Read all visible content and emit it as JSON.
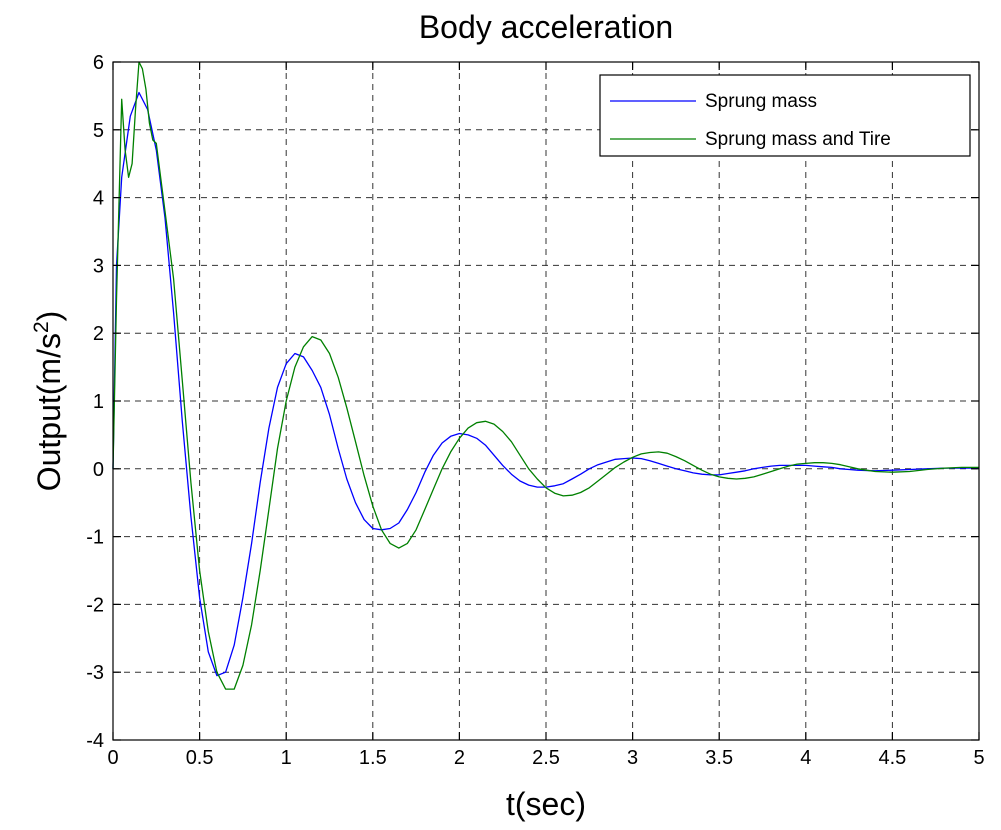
{
  "chart_data": {
    "type": "line",
    "title": "Body acceleration",
    "xlabel": "t(sec)",
    "ylabel": "Output(m/s",
    "ylabel_sup": "2",
    "ylabel_close": ")",
    "xlim": [
      0,
      5
    ],
    "ylim": [
      -4,
      6
    ],
    "xticks": [
      0,
      0.5,
      1,
      1.5,
      2,
      2.5,
      3,
      3.5,
      4,
      4.5,
      5
    ],
    "yticks": [
      -4,
      -3,
      -2,
      -1,
      0,
      1,
      2,
      3,
      4,
      5,
      6
    ],
    "xtick_labels": [
      "0",
      "0.5",
      "1",
      "1.5",
      "2",
      "2.5",
      "3",
      "3.5",
      "4",
      "4.5",
      "5"
    ],
    "ytick_labels": [
      "-4",
      "-3",
      "-2",
      "-1",
      "0",
      "1",
      "2",
      "3",
      "4",
      "5",
      "6"
    ],
    "grid": true,
    "legend_position": "top-right",
    "series": [
      {
        "name": "Sprung mass",
        "color": "#0000ff",
        "points": [
          [
            0,
            0
          ],
          [
            0.02,
            3.0
          ],
          [
            0.05,
            4.3
          ],
          [
            0.1,
            5.2
          ],
          [
            0.15,
            5.55
          ],
          [
            0.2,
            5.3
          ],
          [
            0.25,
            4.7
          ],
          [
            0.3,
            3.7
          ],
          [
            0.35,
            2.3
          ],
          [
            0.4,
            0.7
          ],
          [
            0.45,
            -0.7
          ],
          [
            0.5,
            -1.9
          ],
          [
            0.55,
            -2.7
          ],
          [
            0.6,
            -3.05
          ],
          [
            0.65,
            -3.0
          ],
          [
            0.7,
            -2.6
          ],
          [
            0.75,
            -1.9
          ],
          [
            0.8,
            -1.1
          ],
          [
            0.85,
            -0.2
          ],
          [
            0.9,
            0.6
          ],
          [
            0.95,
            1.2
          ],
          [
            1.0,
            1.55
          ],
          [
            1.05,
            1.7
          ],
          [
            1.1,
            1.65
          ],
          [
            1.15,
            1.45
          ],
          [
            1.2,
            1.2
          ],
          [
            1.25,
            0.8
          ],
          [
            1.3,
            0.3
          ],
          [
            1.35,
            -0.15
          ],
          [
            1.4,
            -0.5
          ],
          [
            1.45,
            -0.75
          ],
          [
            1.5,
            -0.88
          ],
          [
            1.55,
            -0.9
          ],
          [
            1.6,
            -0.88
          ],
          [
            1.65,
            -0.8
          ],
          [
            1.7,
            -0.6
          ],
          [
            1.75,
            -0.35
          ],
          [
            1.8,
            -0.05
          ],
          [
            1.85,
            0.2
          ],
          [
            1.9,
            0.38
          ],
          [
            1.95,
            0.48
          ],
          [
            2.0,
            0.52
          ],
          [
            2.05,
            0.5
          ],
          [
            2.1,
            0.45
          ],
          [
            2.15,
            0.35
          ],
          [
            2.2,
            0.2
          ],
          [
            2.25,
            0.05
          ],
          [
            2.3,
            -0.08
          ],
          [
            2.35,
            -0.18
          ],
          [
            2.4,
            -0.24
          ],
          [
            2.45,
            -0.27
          ],
          [
            2.5,
            -0.27
          ],
          [
            2.55,
            -0.25
          ],
          [
            2.6,
            -0.22
          ],
          [
            2.65,
            -0.15
          ],
          [
            2.7,
            -0.08
          ],
          [
            2.75,
            0.0
          ],
          [
            2.8,
            0.06
          ],
          [
            2.85,
            0.1
          ],
          [
            2.9,
            0.14
          ],
          [
            2.95,
            0.15
          ],
          [
            3.0,
            0.16
          ],
          [
            3.05,
            0.15
          ],
          [
            3.1,
            0.12
          ],
          [
            3.15,
            0.08
          ],
          [
            3.2,
            0.04
          ],
          [
            3.25,
            0.0
          ],
          [
            3.3,
            -0.03
          ],
          [
            3.35,
            -0.06
          ],
          [
            3.4,
            -0.08
          ],
          [
            3.45,
            -0.09
          ],
          [
            3.5,
            -0.09
          ],
          [
            3.55,
            -0.07
          ],
          [
            3.6,
            -0.05
          ],
          [
            3.65,
            -0.03
          ],
          [
            3.7,
            0.0
          ],
          [
            3.75,
            0.02
          ],
          [
            3.8,
            0.04
          ],
          [
            3.85,
            0.05
          ],
          [
            3.9,
            0.05
          ],
          [
            3.95,
            0.05
          ],
          [
            4.0,
            0.05
          ],
          [
            4.05,
            0.04
          ],
          [
            4.1,
            0.03
          ],
          [
            4.15,
            0.02
          ],
          [
            4.2,
            0.0
          ],
          [
            4.25,
            -0.01
          ],
          [
            4.3,
            -0.02
          ],
          [
            4.4,
            -0.03
          ],
          [
            4.5,
            -0.02
          ],
          [
            4.6,
            -0.01
          ],
          [
            4.7,
            0.0
          ],
          [
            4.8,
            0.01
          ],
          [
            4.9,
            0.01
          ],
          [
            5.0,
            0.01
          ]
        ]
      },
      {
        "name": "Sprung mass and Tire",
        "color": "#008000",
        "points": [
          [
            0,
            0
          ],
          [
            0.02,
            2.5
          ],
          [
            0.05,
            5.45
          ],
          [
            0.07,
            4.7
          ],
          [
            0.09,
            4.3
          ],
          [
            0.11,
            4.5
          ],
          [
            0.13,
            5.3
          ],
          [
            0.15,
            6.0
          ],
          [
            0.17,
            5.9
          ],
          [
            0.19,
            5.6
          ],
          [
            0.21,
            5.1
          ],
          [
            0.23,
            4.85
          ],
          [
            0.25,
            4.8
          ],
          [
            0.3,
            3.8
          ],
          [
            0.35,
            2.8
          ],
          [
            0.4,
            1.3
          ],
          [
            0.45,
            -0.2
          ],
          [
            0.5,
            -1.5
          ],
          [
            0.55,
            -2.4
          ],
          [
            0.6,
            -3.0
          ],
          [
            0.65,
            -3.25
          ],
          [
            0.7,
            -3.25
          ],
          [
            0.75,
            -2.9
          ],
          [
            0.8,
            -2.3
          ],
          [
            0.85,
            -1.5
          ],
          [
            0.9,
            -0.6
          ],
          [
            0.95,
            0.3
          ],
          [
            1.0,
            1.0
          ],
          [
            1.05,
            1.5
          ],
          [
            1.1,
            1.8
          ],
          [
            1.15,
            1.95
          ],
          [
            1.2,
            1.9
          ],
          [
            1.25,
            1.7
          ],
          [
            1.3,
            1.35
          ],
          [
            1.35,
            0.9
          ],
          [
            1.4,
            0.4
          ],
          [
            1.45,
            -0.1
          ],
          [
            1.5,
            -0.55
          ],
          [
            1.55,
            -0.9
          ],
          [
            1.6,
            -1.1
          ],
          [
            1.65,
            -1.17
          ],
          [
            1.7,
            -1.1
          ],
          [
            1.75,
            -0.9
          ],
          [
            1.8,
            -0.6
          ],
          [
            1.85,
            -0.3
          ],
          [
            1.9,
            0.0
          ],
          [
            1.95,
            0.25
          ],
          [
            2.0,
            0.45
          ],
          [
            2.05,
            0.6
          ],
          [
            2.1,
            0.68
          ],
          [
            2.15,
            0.7
          ],
          [
            2.2,
            0.66
          ],
          [
            2.25,
            0.55
          ],
          [
            2.3,
            0.4
          ],
          [
            2.35,
            0.2
          ],
          [
            2.4,
            0.0
          ],
          [
            2.45,
            -0.15
          ],
          [
            2.5,
            -0.28
          ],
          [
            2.55,
            -0.36
          ],
          [
            2.6,
            -0.4
          ],
          [
            2.65,
            -0.39
          ],
          [
            2.7,
            -0.35
          ],
          [
            2.75,
            -0.28
          ],
          [
            2.8,
            -0.18
          ],
          [
            2.85,
            -0.08
          ],
          [
            2.9,
            0.02
          ],
          [
            2.95,
            0.1
          ],
          [
            3.0,
            0.17
          ],
          [
            3.05,
            0.22
          ],
          [
            3.1,
            0.24
          ],
          [
            3.15,
            0.25
          ],
          [
            3.2,
            0.23
          ],
          [
            3.25,
            0.18
          ],
          [
            3.3,
            0.12
          ],
          [
            3.35,
            0.05
          ],
          [
            3.4,
            -0.02
          ],
          [
            3.45,
            -0.08
          ],
          [
            3.5,
            -0.12
          ],
          [
            3.55,
            -0.14
          ],
          [
            3.6,
            -0.15
          ],
          [
            3.65,
            -0.14
          ],
          [
            3.7,
            -0.12
          ],
          [
            3.75,
            -0.08
          ],
          [
            3.8,
            -0.04
          ],
          [
            3.85,
            0.0
          ],
          [
            3.9,
            0.04
          ],
          [
            3.95,
            0.07
          ],
          [
            4.0,
            0.08
          ],
          [
            4.05,
            0.09
          ],
          [
            4.1,
            0.09
          ],
          [
            4.15,
            0.08
          ],
          [
            4.2,
            0.06
          ],
          [
            4.25,
            0.03
          ],
          [
            4.3,
            0.0
          ],
          [
            4.35,
            -0.02
          ],
          [
            4.4,
            -0.04
          ],
          [
            4.5,
            -0.05
          ],
          [
            4.6,
            -0.04
          ],
          [
            4.7,
            -0.01
          ],
          [
            4.8,
            0.01
          ],
          [
            4.9,
            0.02
          ],
          [
            5.0,
            0.02
          ]
        ]
      }
    ]
  }
}
